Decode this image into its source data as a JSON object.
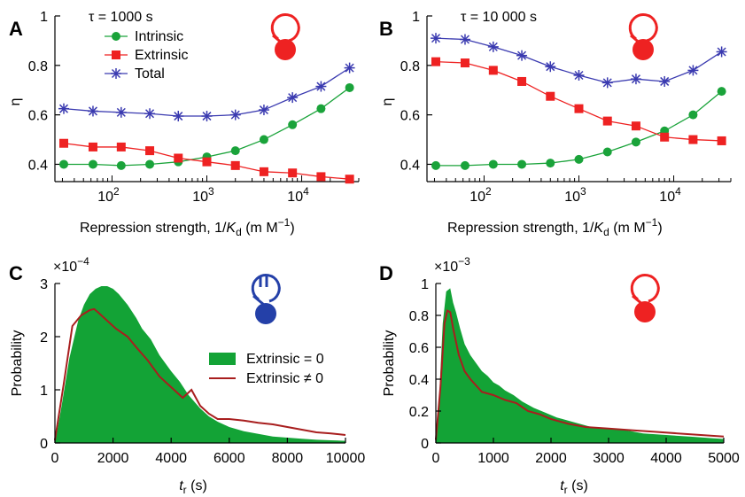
{
  "colors": {
    "intrinsic": "#1aa33a",
    "extrinsic": "#ee2222",
    "total": "#3a3ab0",
    "hist_fill": "#13a336",
    "hist_line": "#a81e1e",
    "circuit_red": "#ee2222",
    "circuit_blue": "#2440a8"
  },
  "icons": {
    "A": "autorepression-circuit-icon",
    "B": "autorepression-circuit-icon",
    "C": "blocked-autorepression-circuit-icon",
    "D": "autorepression-circuit-icon"
  },
  "chart_data": [
    {
      "panel": "A",
      "type": "line",
      "annotation": "τ = 1000 s",
      "xlabel_parts": [
        "Repression strength, 1/",
        "K",
        "d",
        " (m M",
        "−1",
        ")"
      ],
      "ylabel": "η",
      "xscale": "log",
      "xlim": [
        25,
        40000
      ],
      "ylim": [
        0.33,
        1.0
      ],
      "xticks": [
        {
          "v": 100,
          "b": "10",
          "e": "2"
        },
        {
          "v": 1000,
          "b": "10",
          "e": "3"
        },
        {
          "v": 10000,
          "b": "10",
          "e": "4"
        }
      ],
      "yticks": [
        {
          "v": 0.4,
          "label": "0.4"
        },
        {
          "v": 0.6,
          "label": "0.6"
        },
        {
          "v": 0.8,
          "label": "0.8"
        },
        {
          "v": 1.0,
          "label": "1"
        }
      ],
      "x": [
        31,
        63,
        125,
        250,
        500,
        1000,
        2000,
        4000,
        8000,
        16000,
        32000
      ],
      "series": [
        {
          "name": "Intrinsic",
          "marker": "circle",
          "color": "#1aa33a",
          "values": [
            0.4,
            0.4,
            0.395,
            0.4,
            0.41,
            0.43,
            0.455,
            0.5,
            0.56,
            0.625,
            0.71
          ]
        },
        {
          "name": "Extrinsic",
          "marker": "square",
          "color": "#ee2222",
          "values": [
            0.485,
            0.47,
            0.47,
            0.455,
            0.425,
            0.41,
            0.395,
            0.37,
            0.365,
            0.35,
            0.34
          ]
        },
        {
          "name": "Total",
          "marker": "star",
          "color": "#3a3ab0",
          "values": [
            0.625,
            0.615,
            0.61,
            0.605,
            0.595,
            0.595,
            0.6,
            0.62,
            0.67,
            0.715,
            0.79
          ]
        }
      ]
    },
    {
      "panel": "B",
      "type": "line",
      "annotation": "τ = 10 000 s",
      "xlabel_parts": [
        "Repression strength, 1/",
        "K",
        "d",
        " (m M",
        "−1",
        ")"
      ],
      "ylabel": "η",
      "xscale": "log",
      "xlim": [
        25,
        40000
      ],
      "ylim": [
        0.33,
        1.0
      ],
      "xticks": [
        {
          "v": 100,
          "b": "10",
          "e": "2"
        },
        {
          "v": 1000,
          "b": "10",
          "e": "3"
        },
        {
          "v": 10000,
          "b": "10",
          "e": "4"
        }
      ],
      "yticks": [
        {
          "v": 0.4,
          "label": "0.4"
        },
        {
          "v": 0.6,
          "label": "0.6"
        },
        {
          "v": 0.8,
          "label": "0.8"
        },
        {
          "v": 1.0,
          "label": "1"
        }
      ],
      "x": [
        31,
        63,
        125,
        250,
        500,
        1000,
        2000,
        4000,
        8000,
        16000,
        32000
      ],
      "series": [
        {
          "name": "Intrinsic",
          "marker": "circle",
          "color": "#1aa33a",
          "values": [
            0.395,
            0.395,
            0.4,
            0.4,
            0.405,
            0.42,
            0.45,
            0.49,
            0.535,
            0.6,
            0.695
          ]
        },
        {
          "name": "Extrinsic",
          "marker": "square",
          "color": "#ee2222",
          "values": [
            0.815,
            0.81,
            0.78,
            0.735,
            0.675,
            0.625,
            0.575,
            0.555,
            0.51,
            0.5,
            0.495
          ]
        },
        {
          "name": "Total",
          "marker": "star",
          "color": "#3a3ab0",
          "values": [
            0.91,
            0.905,
            0.875,
            0.84,
            0.795,
            0.76,
            0.73,
            0.745,
            0.735,
            0.78,
            0.855
          ]
        }
      ]
    },
    {
      "panel": "C",
      "type": "area",
      "exponent_label": {
        "base": "×10",
        "exp": "−4"
      },
      "xlabel": {
        "t": "t",
        "sub": "r",
        "rest": " (s)"
      },
      "ylabel": "Probability",
      "xlim": [
        0,
        10000
      ],
      "ylim": [
        0,
        3
      ],
      "xticks": [
        0,
        2000,
        4000,
        6000,
        8000,
        10000
      ],
      "yticks": [
        0,
        1,
        2,
        3
      ],
      "series": [
        {
          "name": "Extrinsic = 0",
          "style": "filled",
          "color": "#13a336",
          "x": [
            0,
            200,
            500,
            800,
            1000,
            1200,
            1400,
            1600,
            1800,
            2000,
            2200,
            2500,
            2800,
            3000,
            3300,
            3600,
            4000,
            4300,
            4600,
            5000,
            5300,
            5600,
            6000,
            6500,
            7000,
            7500,
            8000,
            8500,
            9000,
            9500,
            10000
          ],
          "values": [
            0,
            0.6,
            1.6,
            2.3,
            2.6,
            2.8,
            2.9,
            2.95,
            2.95,
            2.9,
            2.8,
            2.6,
            2.35,
            2.15,
            1.95,
            1.65,
            1.35,
            1.15,
            0.9,
            0.65,
            0.5,
            0.4,
            0.3,
            0.22,
            0.17,
            0.12,
            0.1,
            0.08,
            0.06,
            0.05,
            0.04
          ]
        },
        {
          "name": "Extrinsic ≠ 0",
          "style": "line",
          "color": "#a81e1e",
          "x": [
            0,
            300,
            600,
            900,
            1200,
            1350,
            1500,
            1800,
            2100,
            2500,
            2800,
            3200,
            3600,
            4000,
            4400,
            4700,
            5000,
            5300,
            5600,
            6000,
            6500,
            7000,
            7500,
            8000,
            8500,
            9000,
            9500,
            10000
          ],
          "values": [
            0.05,
            1.1,
            2.2,
            2.4,
            2.5,
            2.52,
            2.45,
            2.3,
            2.15,
            2.0,
            1.8,
            1.55,
            1.25,
            1.05,
            0.85,
            1.0,
            0.7,
            0.55,
            0.45,
            0.45,
            0.42,
            0.38,
            0.35,
            0.3,
            0.25,
            0.2,
            0.18,
            0.15
          ]
        }
      ]
    },
    {
      "panel": "D",
      "type": "area",
      "exponent_label": {
        "base": "×10",
        "exp": "−3"
      },
      "xlabel": {
        "t": "t",
        "sub": "r",
        "rest": " (s)"
      },
      "ylabel": "Probability",
      "xlim": [
        0,
        5000
      ],
      "ylim": [
        0,
        1
      ],
      "xticks": [
        0,
        1000,
        2000,
        3000,
        4000,
        5000
      ],
      "yticks": [
        0,
        0.2,
        0.4,
        0.6,
        0.8,
        1
      ],
      "ytick_labels": [
        "0",
        "0.2",
        "0.4",
        "0.6",
        "0.8",
        "1"
      ],
      "series": [
        {
          "name": "Extrinsic = 0",
          "style": "filled",
          "color": "#13a336",
          "x": [
            0,
            60,
            120,
            180,
            250,
            300,
            350,
            420,
            500,
            600,
            700,
            800,
            900,
            1000,
            1100,
            1200,
            1350,
            1500,
            1700,
            1900,
            2100,
            2400,
            2700,
            3000,
            3300,
            3600,
            4000,
            4400,
            4800,
            5000
          ],
          "values": [
            0,
            0.3,
            0.75,
            0.95,
            0.97,
            0.88,
            0.82,
            0.72,
            0.62,
            0.55,
            0.5,
            0.45,
            0.42,
            0.38,
            0.36,
            0.33,
            0.3,
            0.26,
            0.22,
            0.19,
            0.16,
            0.13,
            0.1,
            0.09,
            0.08,
            0.06,
            0.05,
            0.04,
            0.03,
            0.025
          ]
        },
        {
          "name": "Extrinsic ≠ 0",
          "style": "line",
          "color": "#a81e1e",
          "x": [
            0,
            80,
            150,
            200,
            250,
            300,
            400,
            500,
            600,
            800,
            1000,
            1200,
            1400,
            1600,
            1800,
            2000,
            2300,
            2600,
            3000,
            3400,
            3800,
            4200,
            4600,
            5000
          ],
          "values": [
            0.02,
            0.35,
            0.75,
            0.83,
            0.82,
            0.72,
            0.55,
            0.45,
            0.4,
            0.32,
            0.3,
            0.27,
            0.25,
            0.2,
            0.18,
            0.15,
            0.12,
            0.1,
            0.09,
            0.08,
            0.07,
            0.06,
            0.05,
            0.04
          ]
        }
      ]
    }
  ]
}
